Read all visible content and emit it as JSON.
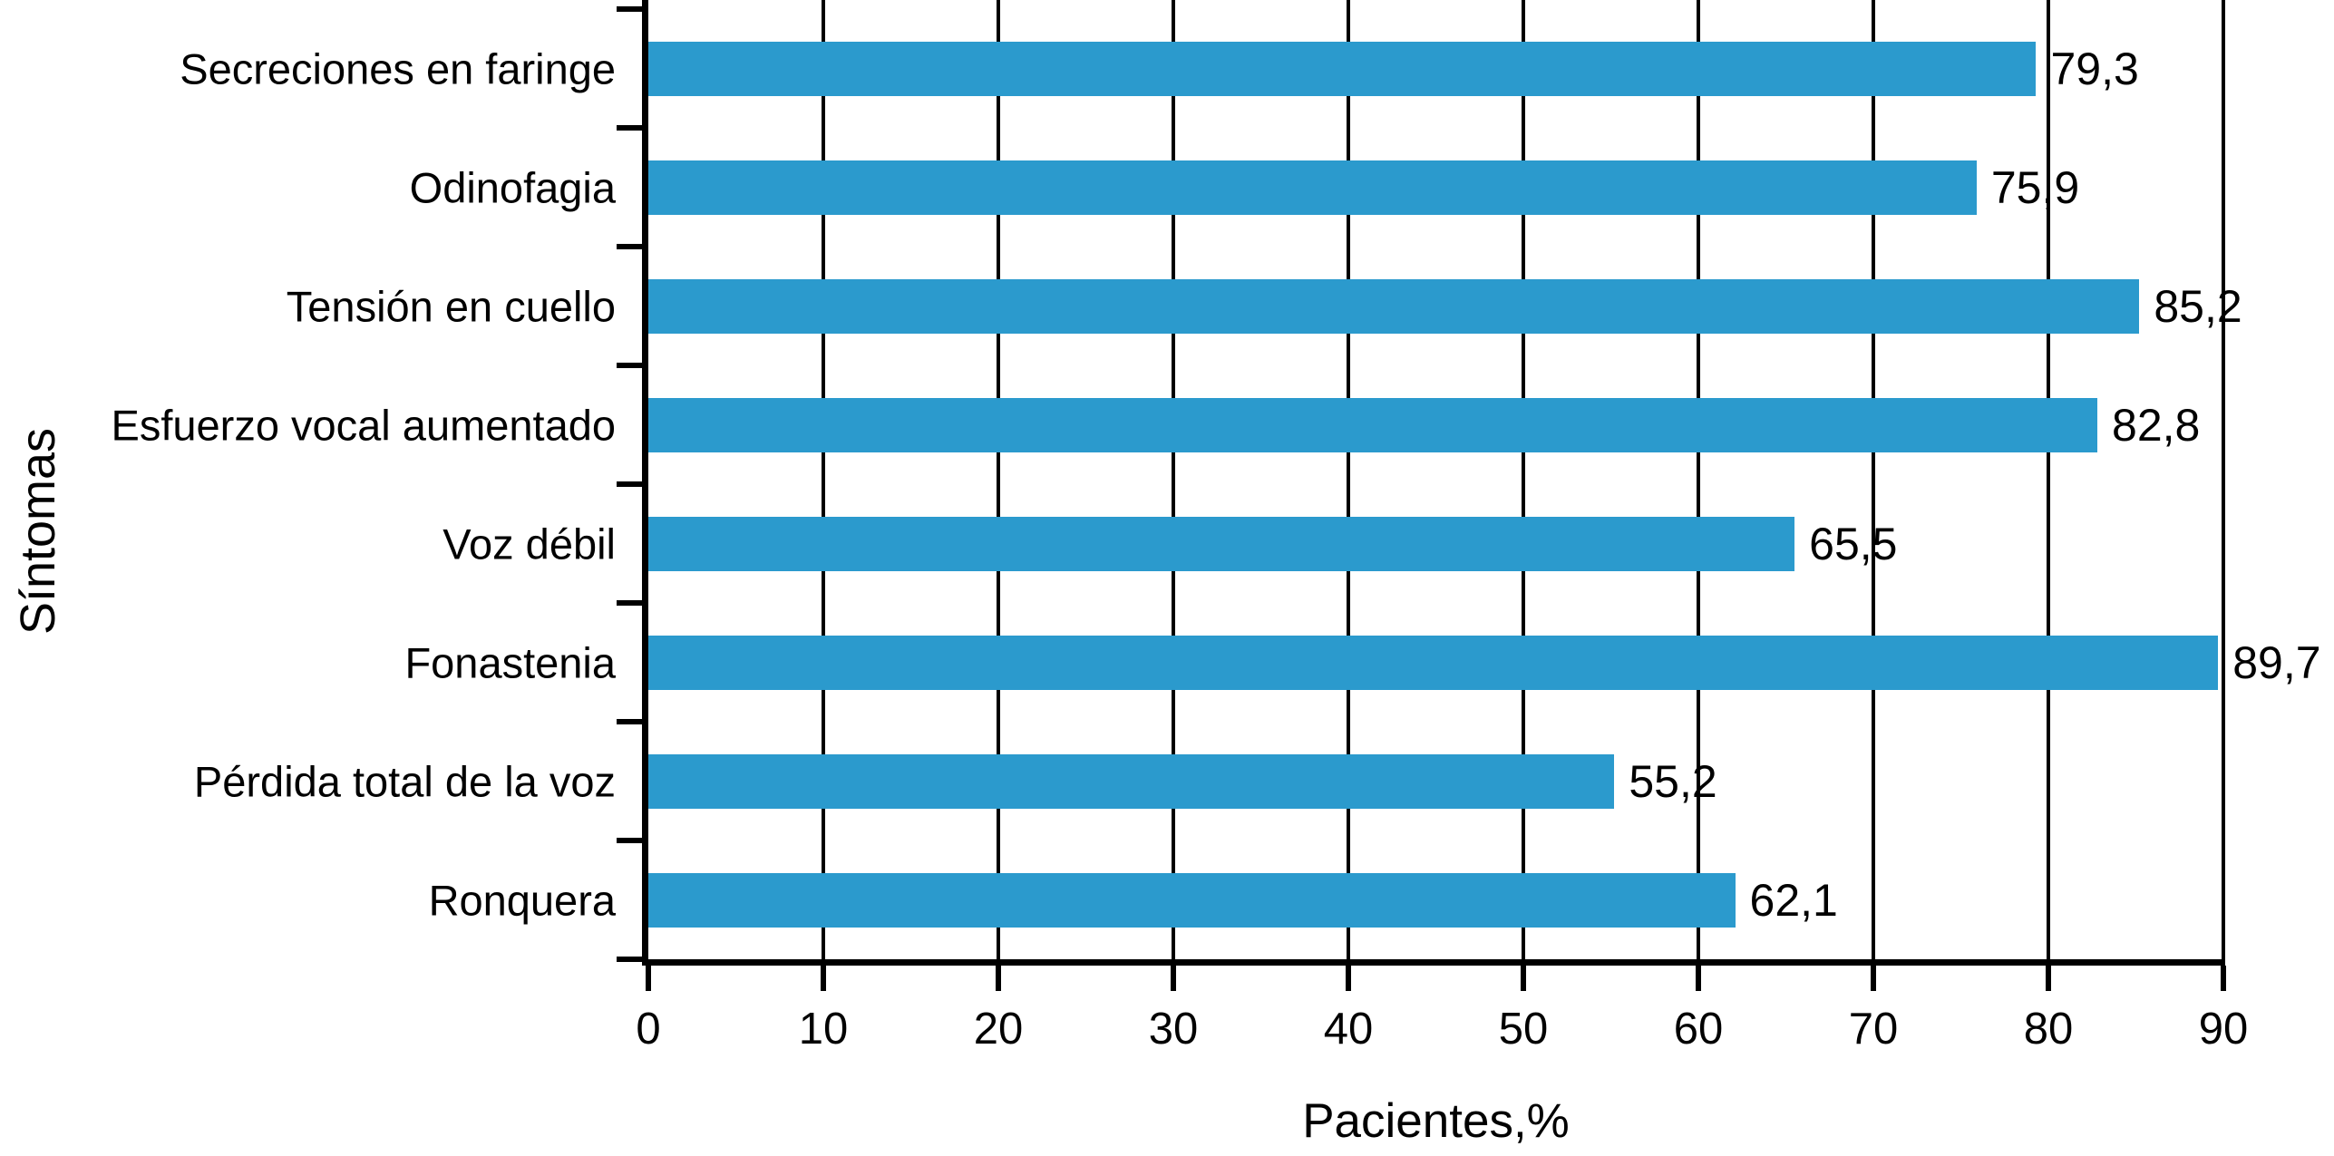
{
  "chart_data": {
    "type": "bar",
    "orientation": "horizontal",
    "title": "",
    "xlabel": "Pacientes,%",
    "ylabel": "Síntomas",
    "categories": [
      "Secreciones en faringe",
      "Odinofagia",
      "Tensión en cuello",
      "Esfuerzo vocal aumentado",
      "Voz débil",
      "Fonastenia",
      "Pérdida total de la voz",
      "Ronquera"
    ],
    "values": [
      79.3,
      75.9,
      85.2,
      82.8,
      65.5,
      89.7,
      55.2,
      62.1
    ],
    "value_labels": [
      "79,3",
      "75,9",
      "85,2",
      "82,8",
      "65,5",
      "89,7",
      "55,2",
      "62,1"
    ],
    "xlim": [
      0,
      90
    ],
    "xticks": [
      0,
      10,
      20,
      30,
      40,
      50,
      60,
      70,
      80,
      90
    ],
    "xtick_labels": [
      "0",
      "10",
      "20",
      "30",
      "40",
      "50",
      "60",
      "70",
      "80",
      "90"
    ],
    "grid": true,
    "legend": "none",
    "bar_color": "#2B9ACD",
    "line_color": "#000000",
    "text_color": "#000000",
    "background_color": "#FFFFFF"
  }
}
